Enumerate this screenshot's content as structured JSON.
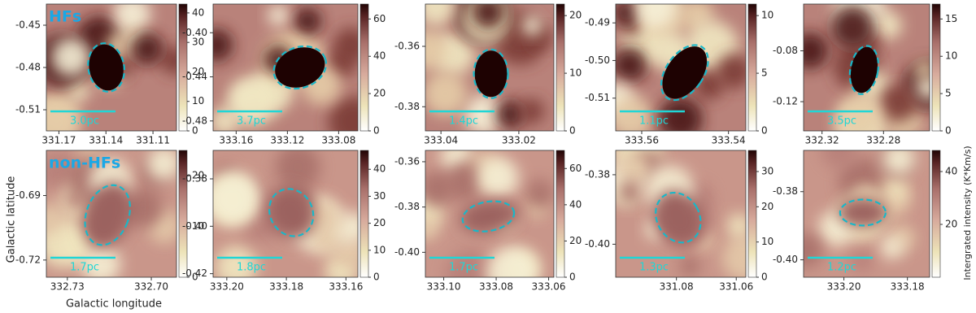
{
  "chart_data": [
    {
      "type": "heatmap",
      "annotation": "HFs",
      "scale_label": "3.0pc",
      "xlim": [
        331.178,
        331.095
      ],
      "xticks": [
        331.17,
        331.14,
        331.11
      ],
      "ylim": [
        -0.435,
        -0.525
      ],
      "yticks": [
        -0.45,
        -0.48,
        -0.51
      ],
      "clim": [
        0,
        43
      ],
      "cticks": [
        0,
        10,
        20,
        30,
        40
      ]
    },
    {
      "type": "heatmap",
      "scale_label": "3.7pc",
      "xlim": [
        333.178,
        333.065
      ],
      "xticks": [
        333.16,
        333.12,
        333.08
      ],
      "ylim": [
        -0.374,
        -0.489
      ],
      "yticks": [
        {
          "value": -0.4,
          "label": "-0.40"
        },
        -0.44,
        -0.48
      ],
      "clim": [
        0,
        68
      ],
      "cticks": [
        0,
        20,
        40,
        60
      ]
    },
    {
      "type": "heatmap",
      "scale_label": "1.4pc",
      "xlim": [
        333.044,
        333.011
      ],
      "xticks": [
        333.04,
        333.02
      ],
      "ylim": [
        -0.346,
        -0.388
      ],
      "yticks": [
        -0.36,
        -0.38
      ],
      "clim": [
        0,
        22
      ],
      "cticks": [
        0,
        10,
        20
      ]
    },
    {
      "type": "heatmap",
      "scale_label": "1.1pc",
      "xlim": [
        333.566,
        333.536
      ],
      "xticks": [
        333.56,
        333.54
      ],
      "ylim": [
        -0.485,
        -0.5187
      ],
      "yticks": [
        -0.49,
        {
          "value": -0.5,
          "label": "-0.50"
        },
        -0.51
      ],
      "clim": [
        0,
        11
      ],
      "cticks": [
        0,
        5,
        10
      ]
    },
    {
      "type": "heatmap",
      "scale_label": "3.5pc",
      "xlim": [
        332.332,
        332.25
      ],
      "xticks": [
        332.32,
        332.28
      ],
      "ylim": [
        -0.0432,
        -0.143
      ],
      "yticks": [
        -0.08,
        -0.12
      ],
      "clim": [
        0,
        17
      ],
      "cticks": [
        0,
        5,
        10,
        15
      ]
    },
    {
      "type": "heatmap",
      "annotation": "non-HFs",
      "scale_label": "1.7pc",
      "xlabel": "Galactic longitude",
      "ylabel": "Galactic latitude",
      "xlim": [
        332.7375,
        332.691
      ],
      "xticks": [
        332.73,
        {
          "value": 332.7,
          "label": "332.70"
        }
      ],
      "ylim": [
        -0.669,
        -0.728
      ],
      "yticks": [
        -0.69,
        -0.72
      ],
      "clim": [
        0,
        25
      ],
      "cticks": [
        0,
        10,
        20
      ]
    },
    {
      "type": "heatmap",
      "scale_label": "1.8pc",
      "xlim": [
        333.2046,
        333.156
      ],
      "xticks": [
        {
          "value": 333.2,
          "label": "333.20"
        },
        333.18,
        333.16
      ],
      "ylim": [
        -0.368,
        -0.4215
      ],
      "yticks": [
        -0.38,
        {
          "value": -0.4,
          "label": "-0.40"
        },
        -0.42
      ],
      "clim": [
        0,
        47
      ],
      "cticks": [
        0,
        10,
        20,
        30,
        40
      ]
    },
    {
      "type": "heatmap",
      "scale_label": "1.7pc",
      "xlim": [
        333.107,
        333.058
      ],
      "xticks": [
        {
          "value": 333.1,
          "label": "333.10"
        },
        333.08,
        333.06
      ],
      "ylim": [
        -0.355,
        -0.411
      ],
      "yticks": [
        -0.36,
        -0.38,
        {
          "value": -0.4,
          "label": "-0.40"
        }
      ],
      "clim": [
        0,
        70
      ],
      "cticks": [
        0,
        20,
        40,
        60
      ]
    },
    {
      "type": "heatmap",
      "scale_label": "1.3pc",
      "xlim": [
        331.1003,
        331.0568
      ],
      "xticks": [
        331.08,
        331.06
      ],
      "ylim": [
        -0.373,
        -0.4095
      ],
      "yticks": [
        -0.38,
        {
          "value": -0.4,
          "label": "-0.40"
        }
      ],
      "clim": [
        0,
        36
      ],
      "cticks": [
        0,
        10,
        20,
        30
      ]
    },
    {
      "type": "heatmap",
      "scale_label": "1.2pc",
      "clabel": "Intergrated intensity (K*Km/s)",
      "xlim": [
        333.2127,
        333.173
      ],
      "xticks": [
        {
          "value": 333.2,
          "label": "333.20"
        },
        333.18
      ],
      "ylim": [
        -0.3679,
        -0.4051
      ],
      "yticks": [
        -0.38,
        {
          "value": -0.4,
          "label": "-0.40"
        }
      ],
      "clim": [
        0,
        48
      ],
      "cticks": [
        20,
        40
      ]
    }
  ]
}
